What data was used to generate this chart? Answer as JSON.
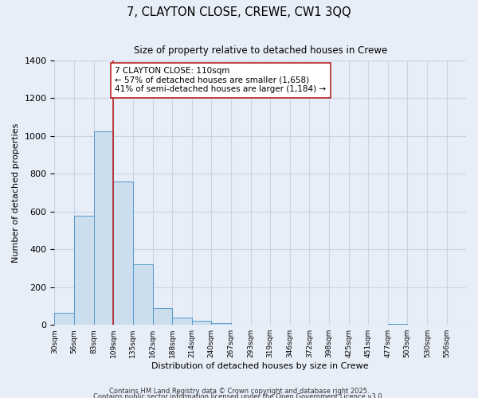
{
  "title": "7, CLAYTON CLOSE, CREWE, CW1 3QQ",
  "subtitle": "Size of property relative to detached houses in Crewe",
  "xlabel": "Distribution of detached houses by size in Crewe",
  "ylabel": "Number of detached properties",
  "bar_values": [
    65,
    580,
    1025,
    760,
    320,
    90,
    40,
    20,
    10,
    0,
    0,
    0,
    0,
    0,
    0,
    0,
    0,
    5,
    0,
    0
  ],
  "bar_color_fill": "#ccdded",
  "bar_color_edge": "#5599cc",
  "background_color": "#e8eef8",
  "grid_color": "#d0d8e8",
  "vline_color": "#bb2222",
  "annotation_text": "7 CLAYTON CLOSE: 110sqm\n← 57% of detached houses are smaller (1,658)\n41% of semi-detached houses are larger (1,184) →",
  "annotation_box_facecolor": "#ffffff",
  "annotation_box_edgecolor": "#bb2222",
  "ylim": [
    0,
    1400
  ],
  "yticks": [
    0,
    200,
    400,
    600,
    800,
    1000,
    1200,
    1400
  ],
  "footer1": "Contains HM Land Registry data © Crown copyright and database right 2025.",
  "footer2": "Contains public sector information licensed under the Open Government Licence v3.0.",
  "bin_edges": [
    30,
    56,
    83,
    109,
    135,
    162,
    188,
    214,
    240,
    267,
    293,
    319,
    346,
    372,
    398,
    425,
    451,
    477,
    503,
    530,
    556
  ]
}
